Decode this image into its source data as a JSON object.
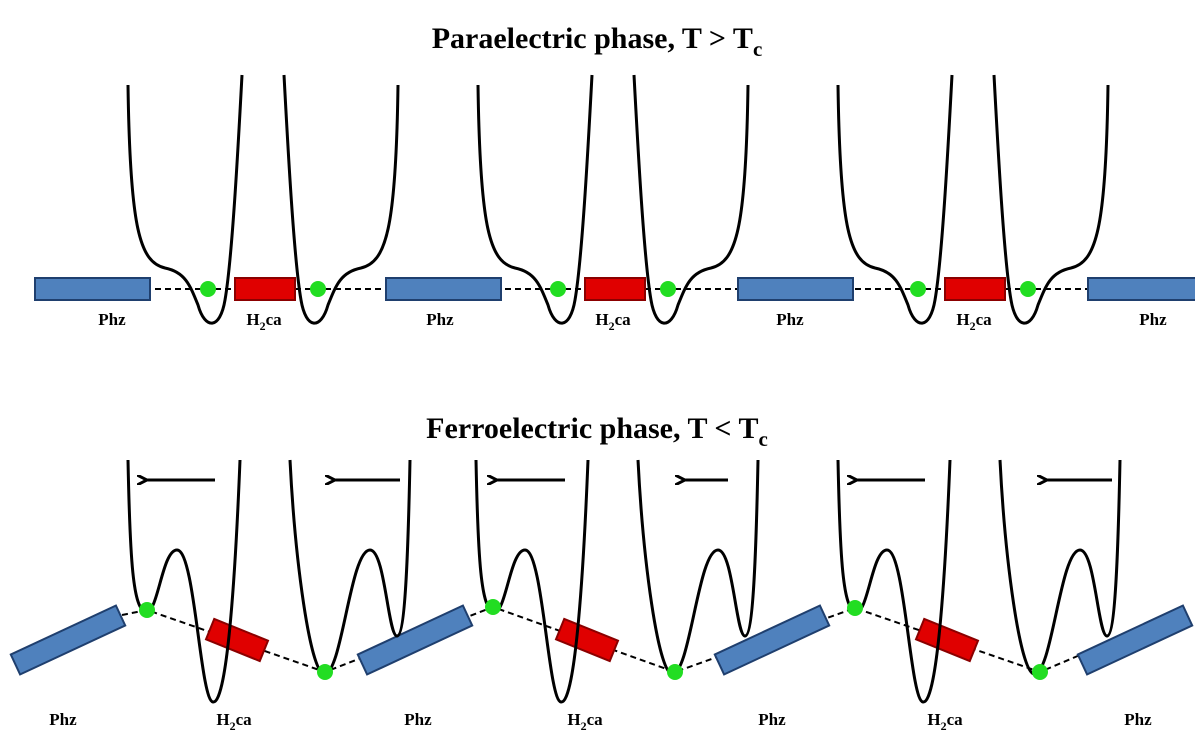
{
  "paraelectric": {
    "title": [
      "Paraelectric phase, T > T",
      "c"
    ],
    "labels": [
      [
        "Phz"
      ],
      [
        "H",
        "2",
        "ca"
      ],
      [
        "Phz"
      ],
      [
        "H",
        "2",
        "ca"
      ],
      [
        "Phz"
      ],
      [
        "H",
        "2",
        "ca"
      ],
      [
        "Phz"
      ]
    ]
  },
  "ferroelectric": {
    "title": [
      "Ferroelectric phase, T < T",
      "c"
    ],
    "labels": [
      [
        "Phz"
      ],
      [
        "H",
        "2",
        "ca"
      ],
      [
        "Phz"
      ],
      [
        "H",
        "2",
        "ca"
      ],
      [
        "Phz"
      ],
      [
        "H",
        "2",
        "ca"
      ],
      [
        "Phz"
      ]
    ]
  }
}
